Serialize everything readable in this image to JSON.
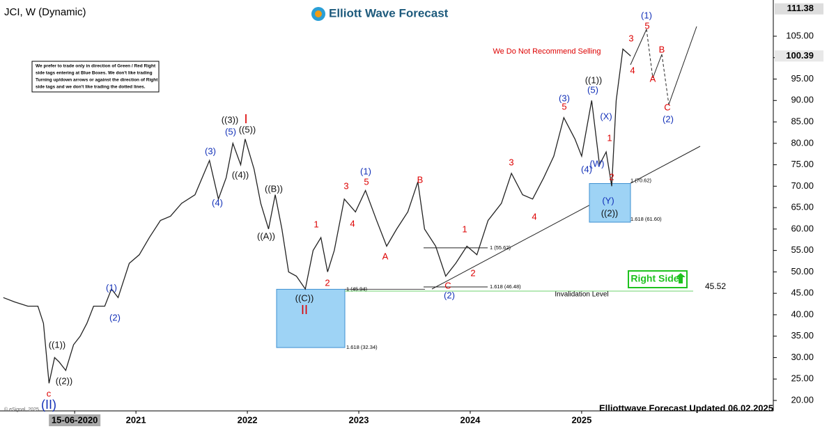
{
  "chart_data": {
    "type": "line",
    "title": "JCI, W (Dynamic)",
    "brand": "Elliott Wave Forecast",
    "footer": "Elliottwave Forecast Updated 06.02.2025",
    "copyright": "© eSignal, 2025",
    "note": [
      "We prefer to trade only in direction of Green / Red Right",
      "side tags entering at Blue Boxes. We don't like trading",
      "Turning up/down arrows or against the direction of Right",
      "side tags and we don't like trading the dotted lines."
    ],
    "warning": "We Do Not Recommend Selling",
    "right_side": "Right Side",
    "invalidation": 45.52,
    "invalidation_label": "Invalidation Level",
    "high_label": 111.38,
    "last_price": 100.39,
    "fib": [
      {
        "value": 45.94,
        "label": "1 (45.94)"
      },
      {
        "value": 32.34,
        "label": "1.618 (32.34)"
      },
      {
        "value": 55.62,
        "label": "1 (55.62)"
      },
      {
        "value": 46.48,
        "label": "1.618 (46.48)"
      },
      {
        "value": 70.62,
        "label": "1 (70.62)"
      },
      {
        "value": 61.6,
        "label": "1.618 (61.60)"
      }
    ],
    "annotations": [
      "((1))",
      "((2))",
      "c",
      "(II)",
      "(1)",
      "(2)",
      "(3)",
      "(4)",
      "((3))",
      "I",
      "(5)",
      "((5))",
      "((4))",
      "((B))",
      "((A))",
      "1",
      "2",
      "((C))",
      "II",
      "3",
      "5",
      "(1)",
      "4",
      "A",
      "B",
      "1",
      "2",
      "C",
      "(2)",
      "3",
      "4",
      "(3)",
      "5",
      "((1))",
      "(5)",
      "(X)",
      "1",
      "(W)",
      "(4)",
      "2",
      "(Y)",
      "((2))",
      "3",
      "5",
      "(1)",
      "4",
      "A",
      "B",
      "C",
      "(2)"
    ],
    "x": [
      2019.81,
      2019.91,
      2020.03,
      2020.12,
      2020.17,
      2020.22,
      2020.27,
      2020.31,
      2020.37,
      2020.44,
      2020.5,
      2020.56,
      2020.62,
      2020.72,
      2020.78,
      2020.84,
      2020.94,
      2021.03,
      2021.12,
      2021.22,
      2021.31,
      2021.41,
      2021.53,
      2021.66,
      2021.74,
      2021.81,
      2021.87,
      2021.94,
      2021.98,
      2022.06,
      2022.12,
      2022.19,
      2022.25,
      2022.31,
      2022.37,
      2022.44,
      2022.52,
      2022.59,
      2022.66,
      2022.72,
      2022.78,
      2022.87,
      2022.97,
      2023.06,
      2023.16,
      2023.25,
      2023.34,
      2023.44,
      2023.53,
      2023.59,
      2023.69,
      2023.78,
      2023.87,
      2023.97,
      2024.06,
      2024.16,
      2024.28,
      2024.37,
      2024.47,
      2024.56,
      2024.66,
      2024.75,
      2024.84,
      2024.94,
      2025.0,
      2025.09,
      2025.16,
      2025.22,
      2025.27,
      2025.31,
      2025.37,
      2025.44
    ],
    "values": [
      44,
      43,
      42,
      42,
      38,
      24,
      30,
      29,
      27,
      33,
      35,
      38,
      42,
      42,
      46,
      44,
      52,
      54,
      58,
      62,
      63,
      66,
      68,
      76,
      67,
      72,
      80,
      75,
      81,
      74,
      66,
      60,
      68,
      60,
      50,
      49,
      46,
      55,
      58,
      50,
      55,
      67,
      64,
      69,
      62,
      56,
      60,
      64,
      71,
      60,
      56,
      49,
      52,
      56,
      54,
      62,
      66,
      73,
      68,
      67,
      72,
      77,
      86,
      81,
      77,
      90,
      75,
      78,
      70,
      90,
      102,
      100.39
    ],
    "color": "#222222",
    "xlim": [
      2019.78,
      2026.72
    ],
    "xticks": [
      {
        "value": 2020.45,
        "label": "15-06-2020"
      },
      2021,
      2022,
      2023,
      2024,
      2025
    ],
    "ylim": [
      17.56,
      112.15
    ],
    "yticks": [
      {
        "value": 20,
        "label": "20.00"
      },
      {
        "value": 25,
        "label": "25.00"
      },
      {
        "value": 30,
        "label": "30.00"
      },
      {
        "value": 35,
        "label": "35.00"
      },
      {
        "value": 40,
        "label": "40.00"
      },
      {
        "value": 45,
        "label": "45.00"
      },
      {
        "value": 50,
        "label": "50.00"
      },
      {
        "value": 55,
        "label": "55.00"
      },
      {
        "value": 60,
        "label": "60.00"
      },
      {
        "value": 65,
        "label": "65.00"
      },
      {
        "value": 70,
        "label": "70.00"
      },
      {
        "value": 75,
        "label": "75.00"
      },
      {
        "value": 80,
        "label": "80.00"
      },
      {
        "value": 85,
        "label": "85.00"
      },
      {
        "value": 90,
        "label": "90.00"
      },
      {
        "value": 95,
        "label": "95.00"
      },
      {
        "value": 100,
        "label": "100.00"
      },
      {
        "value": 105,
        "label": "105.00"
      }
    ]
  }
}
